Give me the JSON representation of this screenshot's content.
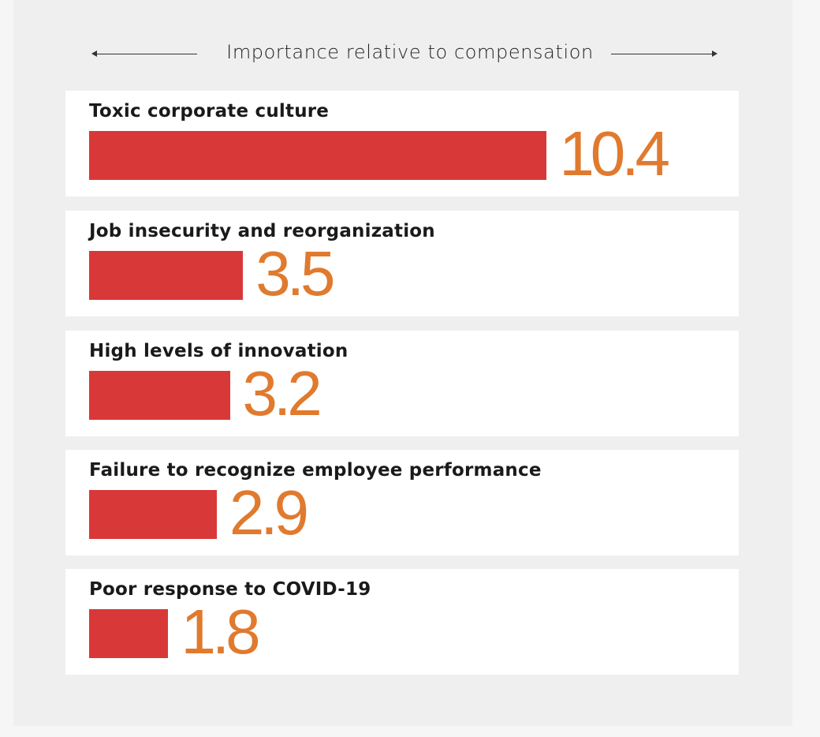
{
  "chart_data": {
    "type": "bar",
    "orientation": "horizontal",
    "xlabel": "Importance relative to compensation",
    "categories": [
      "Toxic corporate culture",
      "Job insecurity and reorganization",
      "High levels of innovation",
      "Failure to recognize employee performance",
      "Poor response to COVID-19"
    ],
    "values": [
      10.4,
      3.5,
      3.2,
      2.9,
      1.8
    ],
    "value_labels": [
      "10.4",
      "3.5",
      "3.2",
      "2.9",
      "1.8"
    ],
    "bar_color": "#d93838",
    "value_color": "#e07a2e",
    "grid": false
  }
}
